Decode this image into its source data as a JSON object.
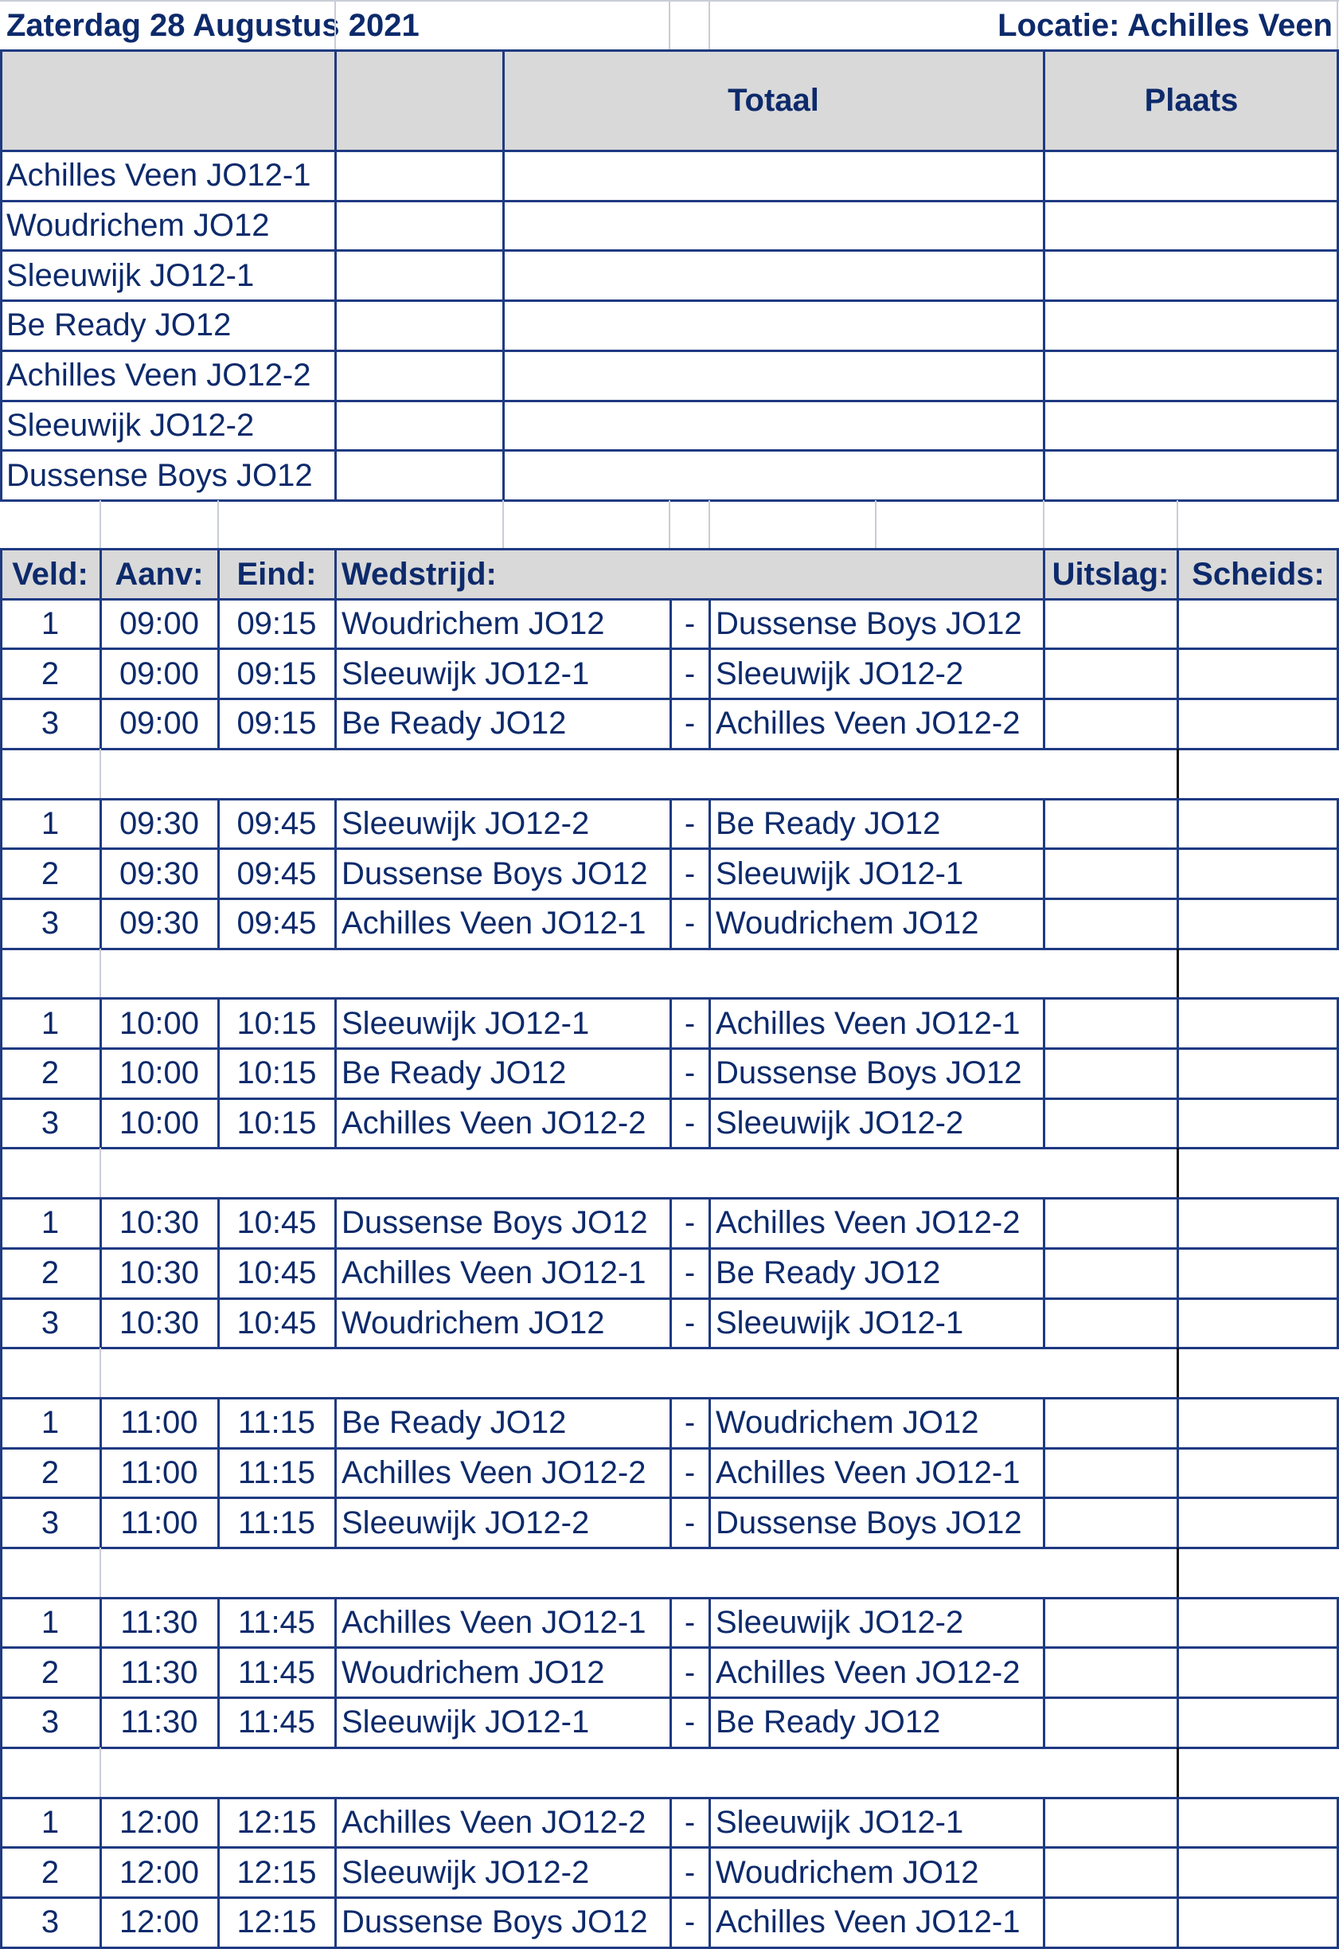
{
  "header": {
    "date": "Zaterdag 28 Augustus 2021",
    "location": "Locatie: Achilles Veen"
  },
  "standings": {
    "col_total": "Totaal",
    "col_place": "Plaats",
    "teams": [
      "Achilles Veen JO12-1",
      "Woudrichem JO12",
      "Sleeuwijk JO12-1",
      "Be Ready JO12",
      "Achilles Veen JO12-2",
      "Sleeuwijk JO12-2",
      "Dussense Boys JO12"
    ]
  },
  "schedule": {
    "col_field": "Veld:",
    "col_start": "Aanv:",
    "col_end": "Eind:",
    "col_match": "Wedstrijd:",
    "col_result": "Uitslag:",
    "col_referee": "Scheids:",
    "separator": "-",
    "rounds": [
      {
        "start": "09:00",
        "end": "09:15",
        "matches": [
          {
            "field": "1",
            "home": "Woudrichem JO12",
            "away": "Dussense Boys JO12"
          },
          {
            "field": "2",
            "home": "Sleeuwijk JO12-1",
            "away": "Sleeuwijk JO12-2"
          },
          {
            "field": "3",
            "home": "Be Ready JO12",
            "away": "Achilles Veen JO12-2"
          }
        ]
      },
      {
        "start": "09:30",
        "end": "09:45",
        "matches": [
          {
            "field": "1",
            "home": "Sleeuwijk JO12-2",
            "away": "Be Ready JO12"
          },
          {
            "field": "2",
            "home": "Dussense Boys JO12",
            "away": "Sleeuwijk JO12-1"
          },
          {
            "field": "3",
            "home": "Achilles Veen JO12-1",
            "away": "Woudrichem JO12"
          }
        ]
      },
      {
        "start": "10:00",
        "end": "10:15",
        "matches": [
          {
            "field": "1",
            "home": "Sleeuwijk JO12-1",
            "away": "Achilles Veen JO12-1"
          },
          {
            "field": "2",
            "home": "Be Ready JO12",
            "away": "Dussense Boys JO12"
          },
          {
            "field": "3",
            "home": "Achilles Veen JO12-2",
            "away": "Sleeuwijk JO12-2"
          }
        ]
      },
      {
        "start": "10:30",
        "end": "10:45",
        "matches": [
          {
            "field": "1",
            "home": "Dussense Boys JO12",
            "away": "Achilles Veen JO12-2"
          },
          {
            "field": "2",
            "home": "Achilles Veen JO12-1",
            "away": "Be Ready JO12"
          },
          {
            "field": "3",
            "home": "Woudrichem JO12",
            "away": "Sleeuwijk JO12-1"
          }
        ]
      },
      {
        "start": "11:00",
        "end": "11:15",
        "matches": [
          {
            "field": "1",
            "home": "Be Ready JO12",
            "away": "Woudrichem JO12"
          },
          {
            "field": "2",
            "home": "Achilles Veen JO12-2",
            "away": "Achilles Veen JO12-1"
          },
          {
            "field": "3",
            "home": "Sleeuwijk JO12-2",
            "away": "Dussense Boys JO12"
          }
        ]
      },
      {
        "start": "11:30",
        "end": "11:45",
        "matches": [
          {
            "field": "1",
            "home": "Achilles Veen JO12-1",
            "away": "Sleeuwijk JO12-2"
          },
          {
            "field": "2",
            "home": "Woudrichem JO12",
            "away": "Achilles Veen JO12-2"
          },
          {
            "field": "3",
            "home": "Sleeuwijk JO12-1",
            "away": "Be Ready JO12"
          }
        ]
      },
      {
        "start": "12:00",
        "end": "12:15",
        "matches": [
          {
            "field": "1",
            "home": "Achilles Veen JO12-2",
            "away": "Sleeuwijk JO12-1"
          },
          {
            "field": "2",
            "home": "Sleeuwijk JO12-2",
            "away": "Woudrichem JO12"
          },
          {
            "field": "3",
            "home": "Dussense Boys JO12",
            "away": "Achilles Veen JO12-1"
          }
        ]
      }
    ]
  },
  "colors": {
    "text": "#0d2a6b",
    "border": "#1f3a82",
    "header_fill": "#d9d9d9",
    "gridline": "#c9cdd6"
  }
}
